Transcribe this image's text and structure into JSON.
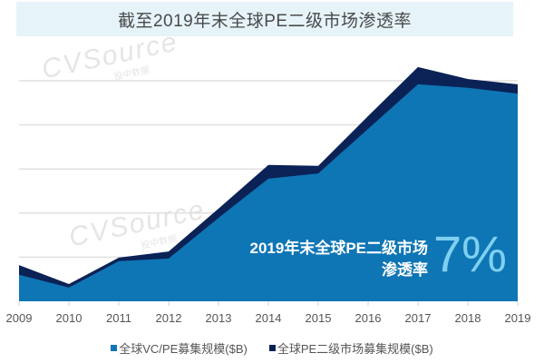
{
  "title": "截至2019年末全球PE二级市场渗透率",
  "watermark": {
    "brand": "CVSource",
    "sub": "投中数据"
  },
  "annotation": {
    "line1": "2019年末全球PE二级市场",
    "line2": "渗透率",
    "value": "7%"
  },
  "legend": [
    {
      "label": "全球VC/PE募集规模($B)",
      "color": "#0f76b5"
    },
    {
      "label": "全球PE二级市场募集规模($B)",
      "color": "#0a2256"
    }
  ],
  "colors": {
    "primary": "#0f76b5",
    "secondary": "#0a2256",
    "title_bg": "#e6f4fa",
    "highlight": "#7fd0f0",
    "grid": "#e0e0e0"
  },
  "chart_data": {
    "type": "area",
    "stacked": true,
    "title": "截至2019年末全球PE二级市场渗透率",
    "xlabel": "",
    "ylabel": "",
    "y_units_note": "no y-axis tick labels shown; values in gridline units (each gridline = 1)",
    "ylim": [
      0,
      5.3
    ],
    "grid": true,
    "legend_position": "bottom",
    "categories": [
      "2009",
      "2010",
      "2011",
      "2012",
      "2013",
      "2014",
      "2015",
      "2016",
      "2017",
      "2018",
      "2019"
    ],
    "series": [
      {
        "name": "全球VC/PE募集规模($B)",
        "values": [
          0.6,
          0.31,
          0.91,
          0.97,
          1.89,
          2.78,
          2.9,
          3.91,
          4.92,
          4.84,
          4.71
        ]
      },
      {
        "name": "全球PE二级市场募集规模($B)",
        "values": [
          0.22,
          0.08,
          0.08,
          0.16,
          0.21,
          0.31,
          0.17,
          0.29,
          0.39,
          0.2,
          0.21
        ]
      }
    ],
    "annotations": [
      {
        "text": "2019年末全球PE二级市场渗透率",
        "value": "7%"
      }
    ]
  }
}
